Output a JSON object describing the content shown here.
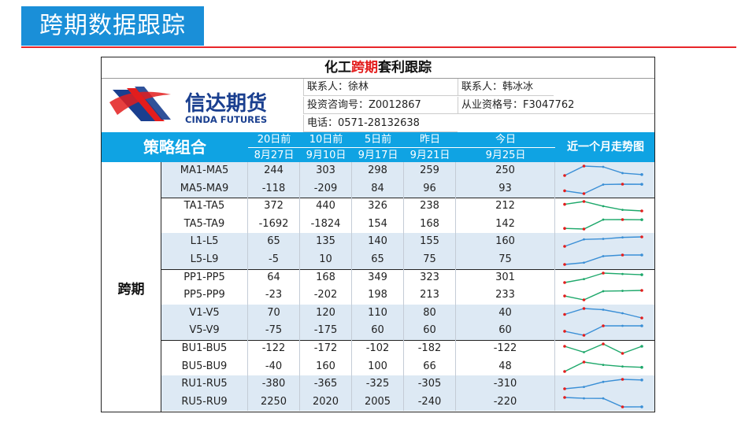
{
  "header": {
    "title": "跨期数据跟踪"
  },
  "sheet": {
    "title_prefix": "化工",
    "title_red": "跨期",
    "title_suffix": "套利跟踪",
    "logo_cn": "信达期货",
    "logo_en": "CINDA FUTURES",
    "contact1": "联系人：徐林",
    "contact2": "联系人：韩冰冰",
    "license1": "投资咨询号：Z0012867",
    "license2": "从业资格号：F3047762",
    "phone": "电话：0571-28132638"
  },
  "columns": {
    "strategy": "策略组合",
    "c1_top": "20日前",
    "c1_bot": "8月27日",
    "c2_top": "10日前",
    "c2_bot": "9月10日",
    "c3_top": "5日前",
    "c3_bot": "9月17日",
    "c4_top": "昨日",
    "c4_bot": "9月21日",
    "c5_top": "今日",
    "c5_bot": "9月25日",
    "trend": "近一个月走势图"
  },
  "group_label": "跨期",
  "rows": [
    {
      "name": "MA1-MA5",
      "v": [
        "244",
        "303",
        "298",
        "259",
        "250"
      ]
    },
    {
      "name": "MA5-MA9",
      "v": [
        "-118",
        "-209",
        "84",
        "96",
        "93"
      ]
    },
    {
      "name": "TA1-TA5",
      "v": [
        "372",
        "440",
        "326",
        "238",
        "212"
      ]
    },
    {
      "name": "TA5-TA9",
      "v": [
        "-1692",
        "-1824",
        "154",
        "168",
        "142"
      ]
    },
    {
      "name": "L1-L5",
      "v": [
        "65",
        "135",
        "140",
        "155",
        "160"
      ]
    },
    {
      "name": "L5-L9",
      "v": [
        "-5",
        "10",
        "65",
        "75",
        "75"
      ]
    },
    {
      "name": "PP1-PP5",
      "v": [
        "64",
        "168",
        "349",
        "323",
        "301"
      ]
    },
    {
      "name": "PP5-PP9",
      "v": [
        "-23",
        "-202",
        "198",
        "213",
        "233"
      ]
    },
    {
      "name": "V1-V5",
      "v": [
        "70",
        "120",
        "110",
        "80",
        "40"
      ]
    },
    {
      "name": "V5-V9",
      "v": [
        "-75",
        "-175",
        "60",
        "60",
        "60"
      ]
    },
    {
      "name": "BU1-BU5",
      "v": [
        "-122",
        "-172",
        "-102",
        "-182",
        "-122"
      ]
    },
    {
      "name": "BU5-BU9",
      "v": [
        "-40",
        "160",
        "100",
        "66",
        "48"
      ]
    },
    {
      "name": "RU1-RU5",
      "v": [
        "-380",
        "-365",
        "-325",
        "-305",
        "-310"
      ]
    },
    {
      "name": "RU5-RU9",
      "v": [
        "2250",
        "2020",
        "2005",
        "-240",
        "-220"
      ]
    }
  ],
  "colors": {
    "title_bg": "#1a8fd8",
    "rule": "#e8262a",
    "header_bg": "#0fa3e3",
    "row_blue": "#dde9f4",
    "spark_blue": "#3a8fd6",
    "spark_green": "#1ea86b",
    "marker_red": "#e31d1d"
  }
}
